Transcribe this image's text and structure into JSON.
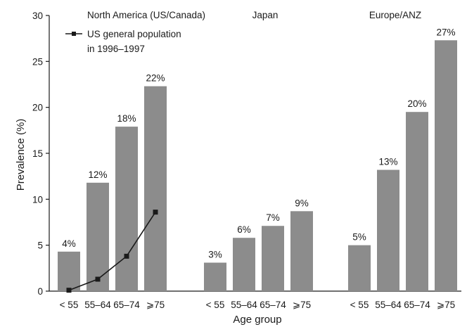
{
  "chart_data": {
    "type": "bar",
    "ylabel": "Prevalence (%)",
    "xlabel": "Age group",
    "ylim": [
      0,
      30
    ],
    "yticks": [
      0,
      5,
      10,
      15,
      20,
      25,
      30
    ],
    "grid": false,
    "categories": [
      "< 55",
      "55–64",
      "65–74",
      "⩾75"
    ],
    "groups": [
      {
        "name": "North America (US/Canada)",
        "values": [
          4.3,
          11.8,
          17.9,
          22.3
        ],
        "labels": [
          "4%",
          "12%",
          "18%",
          "22%"
        ]
      },
      {
        "name": "Japan",
        "values": [
          3.1,
          5.8,
          7.1,
          8.7
        ],
        "labels": [
          "3%",
          "6%",
          "7%",
          "9%"
        ]
      },
      {
        "name": "Europe/ANZ",
        "values": [
          5.0,
          13.2,
          19.5,
          27.3
        ],
        "labels": [
          "5%",
          "13%",
          "20%",
          "27%"
        ]
      }
    ],
    "line_series": {
      "name_line1": "US general population",
      "name_line2": "in 1996–1997",
      "type": "line",
      "group": "North America (US/Canada)",
      "values": [
        0.1,
        1.3,
        3.8,
        8.6
      ]
    },
    "legend_position": "top-left",
    "bar_color": "#8c8c8c",
    "line_color": "#1a1a1a"
  }
}
